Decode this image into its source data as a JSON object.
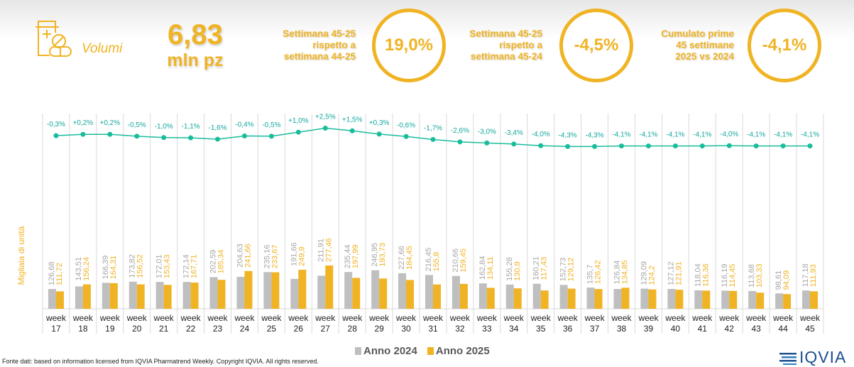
{
  "header": {
    "icon": "medicine-bottle-pills-icon",
    "section_label": "Volumi",
    "total_value": "6,83",
    "total_unit": "mln pz",
    "kpis": [
      {
        "label_lines": [
          "Settimana 45-25",
          "rispetto a",
          "settimana 44-25"
        ],
        "value": "19,0%"
      },
      {
        "label_lines": [
          "Settimana 45-25",
          "rispetto a",
          "settimana 45-24"
        ],
        "value": "-4,5%"
      },
      {
        "label_lines": [
          "Cumulato prime",
          "45 settimane",
          "2025 vs 2024"
        ],
        "value": "-4,1%"
      }
    ]
  },
  "chart_data": {
    "type": "bar",
    "ylabel": "Migliaia di unità",
    "categories": [
      "week 17",
      "week 18",
      "week 19",
      "week 20",
      "week 21",
      "week 22",
      "week 23",
      "week 24",
      "week 25",
      "week 26",
      "week 27",
      "week 28",
      "week 29",
      "week 30",
      "week 31",
      "week 32",
      "week 33",
      "week 34",
      "week 35",
      "week 36",
      "week 37",
      "week 38",
      "week 39",
      "week 40",
      "week 41",
      "week 42",
      "week 43",
      "week 44",
      "week 45"
    ],
    "series": [
      {
        "name": "Anno 2024",
        "color": "#bfbfbf",
        "values": [
          126.68,
          143.51,
          166.39,
          173.82,
          172.01,
          172.14,
          202.59,
          204.63,
          235.16,
          191.66,
          211.91,
          235.44,
          246.95,
          227.66,
          216.45,
          210.66,
          162.84,
          155.28,
          160.21,
          152.73,
          135.7,
          126.84,
          129.09,
          127.12,
          118.04,
          116.19,
          113.68,
          98.61,
          117.18
        ],
        "labels": [
          "126,68",
          "143,51",
          "166,39",
          "173,82",
          "172,01",
          "172,14",
          "202,59",
          "204,63",
          "235,16",
          "191,66",
          "211,91",
          "235,44",
          "246,95",
          "227,66",
          "216,45",
          "210,66",
          "162,84",
          "155,28",
          "160,21",
          "152,73",
          "135,7",
          "126,84",
          "129,09",
          "127,12",
          "118,04",
          "116,19",
          "113,68",
          "98,61",
          "117,18"
        ]
      },
      {
        "name": "Anno 2025",
        "color": "#f0b323",
        "values": [
          111.72,
          156.24,
          164.31,
          156.52,
          153.43,
          167.71,
          185.34,
          241.66,
          233.67,
          249.9,
          277.46,
          197.99,
          193.73,
          184.45,
          155.8,
          159.45,
          134.11,
          130.9,
          117.43,
          129.12,
          126.42,
          134.85,
          124.2,
          121.91,
          116.36,
          114.45,
          103.33,
          94.09,
          111.93
        ],
        "labels": [
          "111,72",
          "156,24",
          "164,31",
          "156,52",
          "153,43",
          "167,71",
          "185,34",
          "241,66",
          "233,67",
          "249,9",
          "277,46",
          "197,99",
          "193,73",
          "184,45",
          "155,8",
          "159,45",
          "134,11",
          "130,9",
          "117,43",
          "129,12",
          "126,42",
          "134,85",
          "124,2",
          "121,91",
          "116,36",
          "114,45",
          "103,33",
          "94,09",
          "111,93"
        ]
      }
    ],
    "growth_line": {
      "color": "#1abc9c",
      "values": [
        -0.3,
        0.2,
        0.2,
        -0.5,
        -1.0,
        -1.1,
        -1.6,
        -0.4,
        -0.5,
        1.0,
        2.5,
        1.5,
        0.3,
        -0.6,
        -1.7,
        -2.6,
        -3.0,
        -3.4,
        -4.0,
        -4.3,
        -4.3,
        -4.1,
        -4.1,
        -4.1,
        -4.1,
        -4.0,
        -4.1,
        -4.1,
        -4.1
      ],
      "labels": [
        "-0,3%",
        "+0,2%",
        "+0,2%",
        "-0,5%",
        "-1,0%",
        "-1,1%",
        "-1,6%",
        "-0,4%",
        "-0,5%",
        "+1,0%",
        "+2,5%",
        "+1,5%",
        "+0,3%",
        "-0,6%",
        "-1,7%",
        "-2,6%",
        "-3,0%",
        "-3,4%",
        "-4,0%",
        "-4,3%",
        "-4,3%",
        "-4,1%",
        "-4,1%",
        "-4,1%",
        "-4,1%",
        "-4,0%",
        "-4,1%",
        "-4,1%",
        "-4,1%"
      ]
    },
    "grid": "vertical separators",
    "legend": "bottom"
  },
  "footer": {
    "source": "Fonte dati: based on information licensed from IQVIA Pharmatrend Weekly. Copyright IQVIA. All rights reserved.",
    "logo": "IQVIA"
  }
}
